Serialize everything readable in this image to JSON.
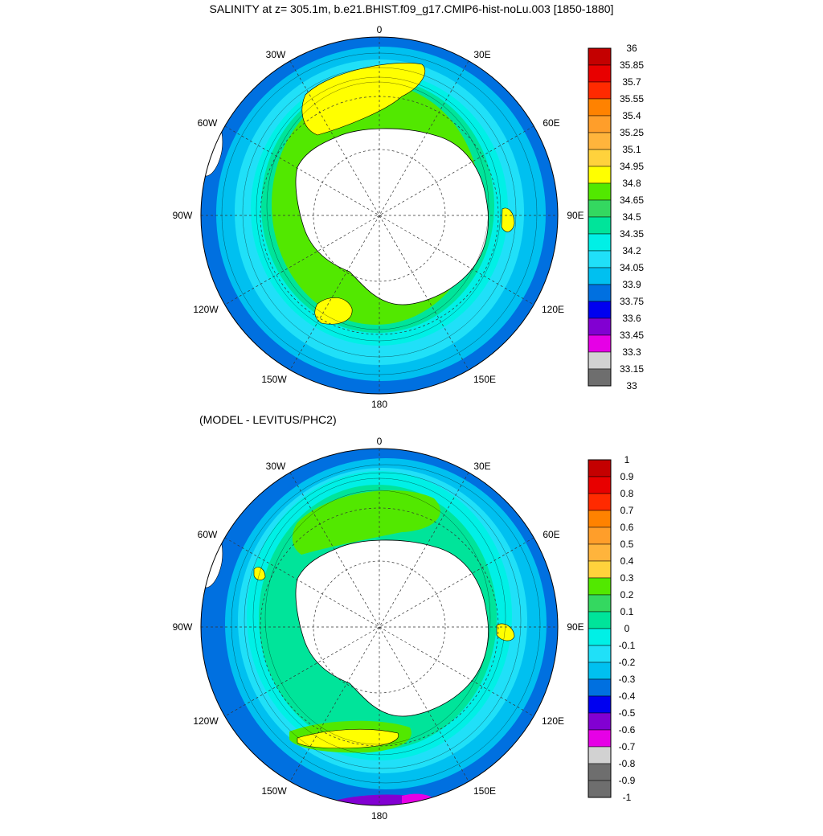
{
  "titles": {
    "top": "SALINITY at z= 305.1m, b.e21.BHIST.f09_g17.CMIP6-hist-noLu.003 [1850-1880]",
    "bottom": "(MODEL - LEVITUS/PHC2)"
  },
  "lon_labels": [
    "0",
    "30E",
    "60E",
    "90E",
    "120E",
    "150E",
    "180",
    "150W",
    "120W",
    "90W",
    "60W",
    "30W"
  ],
  "colorbar_top": {
    "labels": [
      "36",
      "35.85",
      "35.7",
      "35.55",
      "35.4",
      "35.25",
      "35.1",
      "34.95",
      "34.8",
      "34.65",
      "34.5",
      "34.35",
      "34.2",
      "34.05",
      "33.9",
      "33.75",
      "33.6",
      "33.45",
      "33.3",
      "33.15",
      "33"
    ],
    "colors": [
      "#c40000",
      "#e80000",
      "#ff2a00",
      "#ff8200",
      "#ff9e2a",
      "#ffb43c",
      "#ffd23c",
      "#ffff00",
      "#52e800",
      "#34d860",
      "#00e49a",
      "#00f0e6",
      "#20e0f8",
      "#00c0f0",
      "#0070e0",
      "#0000f0",
      "#8200d2",
      "#e600e6",
      "#d2d2d2",
      "#6e6e6e"
    ]
  },
  "colorbar_bottom": {
    "labels": [
      "1",
      "0.9",
      "0.8",
      "0.7",
      "0.6",
      "0.5",
      "0.4",
      "0.3",
      "0.2",
      "0.1",
      "0",
      "-0.1",
      "-0.2",
      "-0.3",
      "-0.4",
      "-0.5",
      "-0.6",
      "-0.7",
      "-0.8",
      "-0.9",
      "-1"
    ],
    "colors": [
      "#c40000",
      "#e80000",
      "#ff2a00",
      "#ff8200",
      "#ff9e2a",
      "#ffb43c",
      "#ffd23c",
      "#52e800",
      "#34d860",
      "#00e49a",
      "#00f0e6",
      "#20e0f8",
      "#00c0f0",
      "#0070e0",
      "#0000f0",
      "#8200d2",
      "#e600e6",
      "#d2d2d2",
      "#6e6e6e",
      "#6e6e6e"
    ]
  },
  "palette": {
    "ocean_outer": "#0070e0",
    "ring_blue": "#00c0f0",
    "ring_cyan": "#20e0f8",
    "ring_aqua": "#00f0e6",
    "ring_seagreen": "#00e49a",
    "ring_green": "#52e800",
    "ring_yellow": "#ffff00",
    "land": "#ffffff",
    "deep_blue": "#0000f0",
    "purple": "#8200d2",
    "magenta": "#e600e6"
  }
}
